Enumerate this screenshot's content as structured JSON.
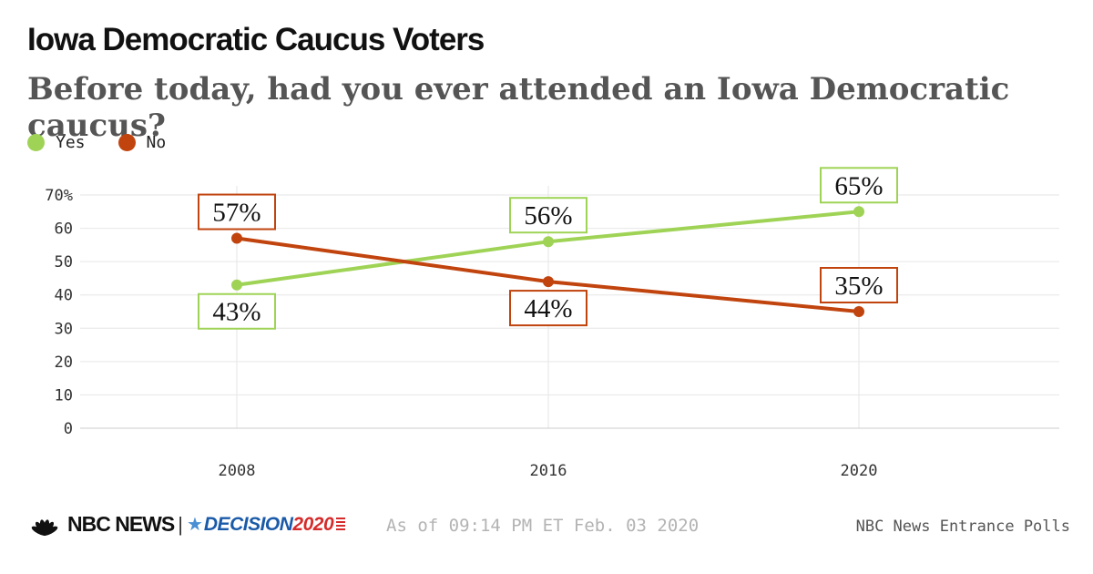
{
  "title": "Iowa Democratic Caucus Voters",
  "subtitle": "Before today, had you ever attended an Iowa Democratic caucus?",
  "legend": [
    {
      "label": "Yes",
      "color": "#9fd356"
    },
    {
      "label": "No",
      "color": "#c1440e"
    }
  ],
  "chart_data": {
    "type": "line",
    "title": "Iowa Democratic Caucus Voters",
    "subtitle": "Before today, had you ever attended an Iowa Democratic caucus?",
    "x": [
      "2008",
      "2016",
      "2020"
    ],
    "series": [
      {
        "name": "Yes",
        "color": "#9fd356",
        "values": [
          43,
          56,
          65
        ],
        "labels": [
          "43%",
          "56%",
          "65%"
        ],
        "label_side": [
          "below",
          "above",
          "above"
        ]
      },
      {
        "name": "No",
        "color": "#c1440e",
        "values": [
          57,
          44,
          35
        ],
        "labels": [
          "57%",
          "44%",
          "35%"
        ],
        "label_side": [
          "above",
          "below",
          "above"
        ]
      }
    ],
    "ylim": [
      0,
      70
    ],
    "yticks": [
      0,
      10,
      20,
      30,
      40,
      50,
      60,
      70
    ],
    "ytick_labels": [
      "0",
      "10",
      "20",
      "30",
      "40",
      "50",
      "60",
      "70%"
    ],
    "xlabel": "",
    "ylabel": "",
    "grid": true,
    "legend_position": "top-left"
  },
  "footer": {
    "brand": "NBC NEWS",
    "separator": "|",
    "decision": "DECISION",
    "decision_year": "2020",
    "timestamp": "As of 09:14 PM ET Feb. 03 2020",
    "source": "NBC News Entrance Polls"
  }
}
